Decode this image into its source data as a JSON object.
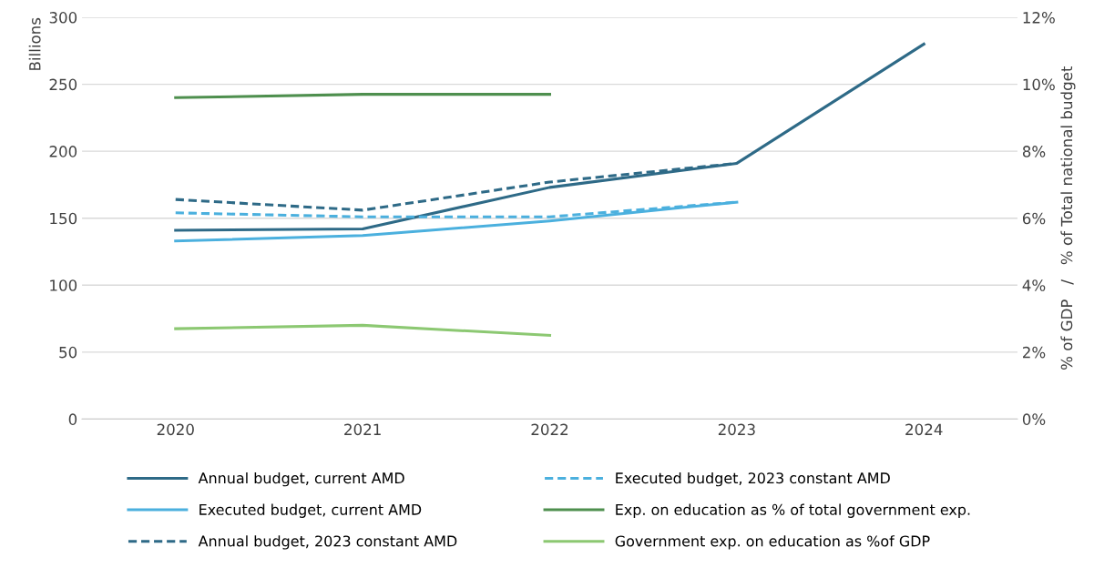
{
  "chart_data": {
    "type": "line",
    "ylabel": "Billions",
    "y2label": "% of GDP   /   % of Total national budget",
    "categories": [
      "2020",
      "2021",
      "2022",
      "2023",
      "2024"
    ],
    "series": [
      {
        "name": "Annual budget, current AMD",
        "color": "#2e6a87",
        "line_style": "solid",
        "values": [
          141,
          142,
          173,
          191,
          280
        ]
      },
      {
        "name": "Executed budget, current AMD",
        "color": "#4bb0de",
        "line_style": "solid",
        "values": [
          133,
          137,
          148,
          162,
          null
        ]
      },
      {
        "name": "Annual budget, 2023 constant AMD",
        "color": "#2e6a87",
        "line_style": "dashed",
        "values": [
          164,
          156,
          177,
          191,
          null
        ]
      },
      {
        "name": "Executed budget, 2023 constant AMD",
        "color": "#4bb0de",
        "line_style": "dashed",
        "values": [
          154,
          151,
          151,
          162,
          null
        ]
      },
      {
        "name": "Exp. on education as % of total government exp.",
        "color": "#4e8f4e",
        "line_style": "solid",
        "axis": "y2",
        "values": [
          9.6,
          9.7,
          9.7,
          null,
          null
        ]
      },
      {
        "name": "Government exp. on education as %of GDP",
        "color": "#8cc872",
        "line_style": "solid",
        "axis": "y2",
        "values": [
          2.7,
          2.8,
          2.5,
          null,
          null
        ]
      }
    ],
    "ylim": [
      0,
      300
    ],
    "yticks": [
      0,
      50,
      100,
      150,
      200,
      250,
      300
    ],
    "y2lim": [
      0,
      12
    ],
    "y2ticks": [
      {
        "value": 0,
        "label": "0%"
      },
      {
        "value": 2,
        "label": "2%"
      },
      {
        "value": 4,
        "label": "4%"
      },
      {
        "value": 6,
        "label": "6%"
      },
      {
        "value": 8,
        "label": "8%"
      },
      {
        "value": 10,
        "label": "10%"
      },
      {
        "value": 12,
        "label": "12%"
      }
    ],
    "grid": "y",
    "legend": "bottom",
    "marker": "none"
  }
}
